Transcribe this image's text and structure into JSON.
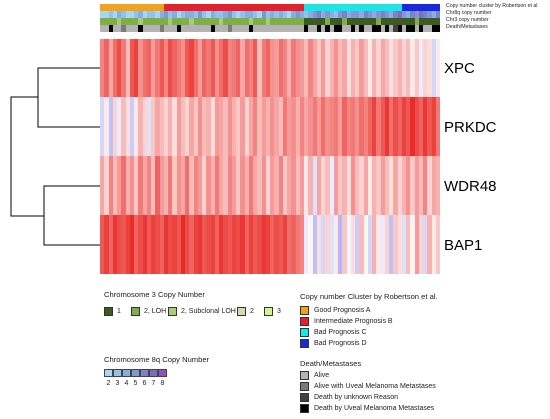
{
  "chart_data": {
    "type": "heatmap",
    "genes": [
      "XPC",
      "PRKDC",
      "WDR48",
      "BAP1"
    ],
    "n_samples": 80,
    "annotation_tracks": [
      {
        "label": "Copy number cluster by Robertson et al."
      },
      {
        "label": "Chr8q copy number"
      },
      {
        "label": "Chr3 copy number"
      },
      {
        "label": "Death/Metastases"
      }
    ],
    "cluster_track": [
      0,
      0,
      0,
      0,
      0,
      0,
      0,
      0,
      0,
      0,
      0,
      0,
      0,
      0,
      0,
      1,
      1,
      1,
      1,
      1,
      1,
      1,
      1,
      1,
      1,
      1,
      1,
      1,
      1,
      1,
      1,
      1,
      1,
      1,
      1,
      1,
      1,
      1,
      1,
      1,
      1,
      1,
      1,
      1,
      1,
      1,
      1,
      1,
      2,
      2,
      2,
      2,
      2,
      2,
      2,
      2,
      2,
      2,
      2,
      2,
      2,
      2,
      2,
      2,
      2,
      2,
      2,
      2,
      2,
      2,
      2,
      3,
      3,
      3,
      3,
      3,
      3,
      3,
      3,
      3
    ],
    "chr8q_track": [
      0,
      0,
      1,
      0,
      2,
      1,
      0,
      0,
      1,
      2,
      0,
      1,
      1,
      0,
      2,
      3,
      1,
      2,
      0,
      1,
      2,
      2,
      1,
      3,
      1,
      0,
      2,
      1,
      1,
      2,
      3,
      1,
      0,
      1,
      2,
      2,
      1,
      0,
      3,
      1,
      2,
      1,
      2,
      1,
      0,
      2,
      3,
      2,
      1,
      2,
      3,
      4,
      2,
      3,
      2,
      1,
      3,
      4,
      2,
      3,
      3,
      2,
      4,
      3,
      2,
      3,
      4,
      3,
      2,
      4,
      5,
      3,
      2,
      4,
      3,
      5,
      4,
      3,
      2,
      4
    ],
    "chr3_track": [
      1,
      1,
      1,
      1,
      2,
      1,
      1,
      1,
      1,
      2,
      1,
      1,
      1,
      1,
      1,
      1,
      2,
      1,
      1,
      1,
      1,
      2,
      1,
      1,
      1,
      1,
      1,
      1,
      2,
      1,
      1,
      1,
      1,
      1,
      1,
      2,
      1,
      1,
      1,
      2,
      1,
      1,
      1,
      1,
      1,
      1,
      1,
      1,
      0,
      0,
      0,
      0,
      0,
      1,
      0,
      0,
      0,
      1,
      0,
      0,
      0,
      0,
      0,
      0,
      0,
      1,
      0,
      0,
      0,
      0,
      0,
      0,
      0,
      0,
      1,
      0,
      0,
      0,
      0,
      0
    ],
    "death_track": [
      0,
      0,
      3,
      0,
      0,
      1,
      0,
      0,
      0,
      3,
      0,
      0,
      0,
      0,
      1,
      0,
      0,
      0,
      3,
      0,
      0,
      0,
      0,
      0,
      0,
      0,
      3,
      0,
      0,
      0,
      1,
      0,
      0,
      0,
      0,
      3,
      0,
      0,
      0,
      0,
      0,
      0,
      0,
      0,
      0,
      0,
      0,
      0,
      3,
      0,
      0,
      3,
      0,
      3,
      0,
      3,
      3,
      0,
      0,
      3,
      0,
      3,
      0,
      0,
      3,
      3,
      0,
      3,
      0,
      2,
      3,
      0,
      3,
      3,
      0,
      3,
      0,
      0,
      3,
      3
    ],
    "expression": {
      "XPC": [
        0.55,
        0.7,
        0.4,
        0.65,
        0.8,
        0.6,
        0.3,
        0.75,
        0.85,
        0.5,
        0.65,
        0.7,
        0.45,
        0.6,
        0.75,
        0.55,
        0.8,
        0.7,
        0.6,
        0.5,
        0.75,
        0.85,
        0.65,
        0.45,
        0.7,
        0.6,
        0.75,
        0.5,
        0.65,
        0.8,
        0.55,
        0.6,
        0.7,
        0.4,
        0.65,
        0.55,
        0.75,
        0.3,
        0.6,
        0.7,
        0.5,
        0.45,
        0.65,
        0.55,
        0.35,
        0.6,
        0.5,
        0.45,
        0.3,
        0.55,
        0.4,
        0.25,
        0.45,
        0.2,
        0.35,
        0.5,
        0.3,
        0.4,
        0.15,
        0.35,
        0.25,
        0.45,
        0.3,
        0.1,
        0.35,
        0.2,
        0.4,
        0.3,
        0.15,
        0.25,
        0.35,
        0.2,
        0.3,
        0.1,
        0.25,
        -0.1,
        0.2,
        0.15,
        -0.2,
        0.1
      ],
      "PRKDC": [
        -0.2,
        0.1,
        -0.3,
        0.2,
        -0.1,
        0.3,
        0.15,
        -0.25,
        0.1,
        0.35,
        0.2,
        -0.15,
        0.25,
        0.4,
        0.3,
        0.2,
        0.35,
        0.15,
        0.45,
        0.3,
        0.2,
        0.4,
        0.25,
        0.5,
        0.3,
        0.35,
        0.15,
        0.45,
        0.4,
        0.3,
        0.5,
        0.35,
        0.25,
        0.45,
        0.2,
        0.4,
        0.55,
        0.3,
        0.45,
        0.35,
        0.5,
        0.4,
        0.3,
        0.6,
        0.45,
        0.5,
        0.35,
        0.55,
        0.4,
        0.5,
        0.6,
        0.45,
        0.65,
        0.5,
        0.55,
        0.6,
        0.45,
        0.7,
        0.55,
        0.6,
        0.5,
        0.65,
        0.55,
        0.7,
        0.85,
        0.6,
        0.75,
        0.9,
        0.65,
        0.8,
        0.7,
        0.85,
        0.75,
        0.95,
        0.8,
        0.7,
        0.9,
        0.75,
        0.85,
        0.6
      ],
      "WDR48": [
        0.4,
        0.2,
        0.55,
        0.3,
        0.45,
        0.65,
        0.35,
        0.5,
        0.25,
        0.6,
        0.4,
        0.55,
        0.3,
        0.7,
        0.45,
        0.35,
        0.6,
        0.25,
        0.5,
        0.4,
        0.65,
        0.3,
        0.55,
        0.45,
        0.2,
        0.5,
        0.35,
        0.6,
        0.4,
        0.3,
        0.55,
        0.45,
        0.25,
        0.5,
        0.35,
        0.6,
        0.4,
        0.3,
        0.5,
        0.2,
        0.45,
        0.35,
        0.55,
        0.25,
        0.4,
        0.5,
        0.3,
        0.45,
        0.1,
        0.35,
        -0.15,
        0.4,
        0.2,
        0.3,
        -0.1,
        0.45,
        0.25,
        0.35,
        0.15,
        0.5,
        0.3,
        0.2,
        0.4,
        0.1,
        0.35,
        0.25,
        0.45,
        0.3,
        0.15,
        0.4,
        0.2,
        0.35,
        0.5,
        0.25,
        0.45,
        0.3,
        0.55,
        0.2,
        0.4,
        0.35
      ],
      "BAP1": [
        0.75,
        0.85,
        0.7,
        0.9,
        0.8,
        0.75,
        0.85,
        0.95,
        0.7,
        0.8,
        0.9,
        0.75,
        0.85,
        0.8,
        0.7,
        0.9,
        0.8,
        0.85,
        0.75,
        0.95,
        0.8,
        0.7,
        0.85,
        0.9,
        0.75,
        0.8,
        0.85,
        0.7,
        0.9,
        0.8,
        0.75,
        0.85,
        0.8,
        0.9,
        0.7,
        0.85,
        0.75,
        0.8,
        0.9,
        0.85,
        0.7,
        0.8,
        0.75,
        0.85,
        0.65,
        0.7,
        0.6,
        0.55,
        -0.1,
        0.05,
        -0.3,
        0.15,
        -0.2,
        0.2,
        -0.15,
        0.1,
        -0.35,
        0.25,
        -0.05,
        0.15,
        -0.25,
        0.3,
        0.05,
        -0.2,
        0.35,
        0.1,
        -0.1,
        0.2,
        -0.3,
        0.25,
        0.15,
        -0.15,
        0.3,
        0.05,
        0.45,
        0.2,
        -0.2,
        0.35,
        0.1,
        0.25
      ]
    },
    "expression_colors": {
      "high": "#e8211c",
      "mid": "#ffffff",
      "low": "#2b35e6"
    },
    "dendrogram": "XPC joins PRKDC; WDR48 joins BAP1; the two pairs join at the root"
  },
  "gene_labels": [
    "XPC",
    "PRKDC",
    "WDR48",
    "BAP1"
  ],
  "legend_chr3": {
    "title": "Chromosome 3 Copy Number",
    "items": [
      {
        "label": "1",
        "color": "#3d5a20"
      },
      {
        "label": "2, LOH",
        "color": "#7fae45"
      },
      {
        "label": "2, Subclonal LOH",
        "color": "#a9c97c"
      },
      {
        "label": "2",
        "color": "#c9dfae"
      },
      {
        "label": "3",
        "color": "#d5f49a"
      }
    ]
  },
  "legend_cluster": {
    "title": "Copy number Cluster by Robertson et al.",
    "items": [
      {
        "label": "Good Prognosis A",
        "color": "#f2a21b"
      },
      {
        "label": "Intermediate Prognosis B",
        "color": "#e4202b"
      },
      {
        "label": "Bad Prognosis C",
        "color": "#19e6e6"
      },
      {
        "label": "Bad Prognosis D",
        "color": "#1628e0"
      }
    ]
  },
  "legend_chr8": {
    "title": "Chromosome 8q Copy Number",
    "ticks": [
      "2",
      "3",
      "4",
      "5",
      "6",
      "7",
      "8"
    ],
    "colors": [
      "#a9d7f2",
      "#8fc3eb",
      "#86aee0",
      "#7f97d4",
      "#7d81c9",
      "#7f6cc0",
      "#8a55b9"
    ]
  },
  "legend_death": {
    "title": "Death/Metastases",
    "items": [
      {
        "label": "Alive",
        "color": "#b3b3b3"
      },
      {
        "label": "Alive with Uveal Melanoma Metastases",
        "color": "#7a7a7a"
      },
      {
        "label": "Death by unknown Reason",
        "color": "#404040"
      },
      {
        "label": "Death by Uveal Melanoma Metastases",
        "color": "#000000"
      }
    ]
  },
  "annotation_labels": {
    "cluster": "Copy number cluster by Robertson et al",
    "chr8q": "Chr8q copy number",
    "chr3": "Chr3 copy number",
    "death": "Death/Metastases"
  }
}
